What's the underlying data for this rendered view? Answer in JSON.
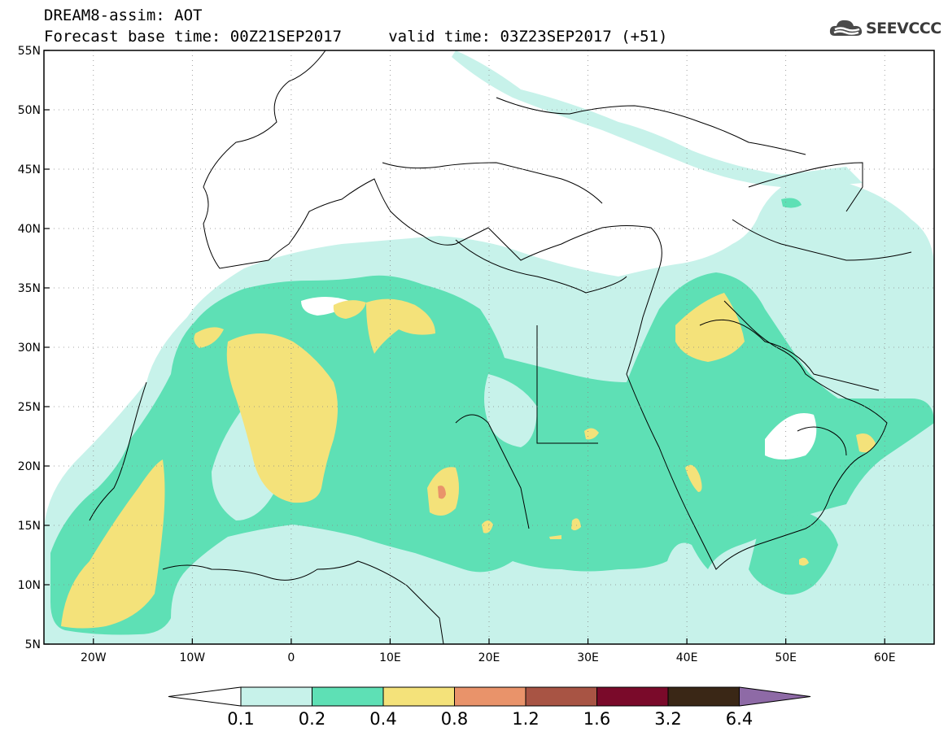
{
  "header": {
    "line1": "DREAM8-assim: AOT",
    "line2": "Forecast base time: 00Z21SEP2017     valid time: 03Z23SEP2017 (+51)"
  },
  "logo": {
    "text": "SEEVCCC",
    "icon": "cloud-icon"
  },
  "map": {
    "lon_range": [
      -25,
      65
    ],
    "lat_range": [
      5,
      55
    ],
    "lat_labels": [
      "55N",
      "50N",
      "45N",
      "40N",
      "35N",
      "30N",
      "25N",
      "20N",
      "15N",
      "10N",
      "5N"
    ],
    "lon_labels": [
      "20W",
      "10W",
      "0",
      "10E",
      "20E",
      "30E",
      "40E",
      "50E",
      "60E"
    ]
  },
  "colorbar": {
    "labels": [
      "0.1",
      "0.2",
      "0.4",
      "0.8",
      "1.2",
      "1.6",
      "3.2",
      "6.4"
    ],
    "colors": {
      "under": "#ffffff",
      "bins": [
        "#c7f2ea",
        "#5ee0b5",
        "#f4e27a",
        "#e9936a",
        "#a85444",
        "#7a0a2a",
        "#3a2716"
      ],
      "over": "#8e6aa6"
    }
  },
  "palette": {
    "c1": "#c7f2ea",
    "c2": "#5ee0b5",
    "c3": "#f4e27a",
    "c4": "#e9936a"
  }
}
